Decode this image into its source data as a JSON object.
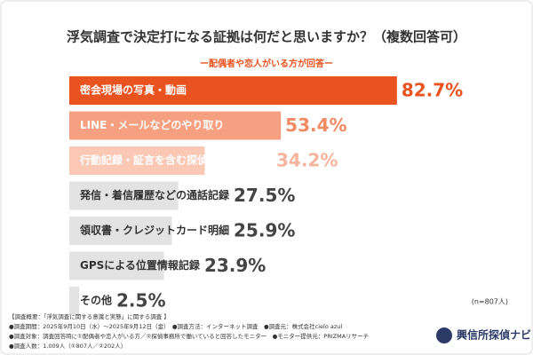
{
  "chart_data": {
    "type": "bar",
    "orientation": "horizontal",
    "title": "浮気調査で決定打になる証拠は何だと思いますか？（複数回答可）",
    "subtitle": "ー配偶者や恋人がいる方が回答ー",
    "categories": [
      "密会現場の写真・動画",
      "LINE・メールなどのやり取り",
      "行動記録・証言を含む探偵の調査報告書",
      "発信・着信履歴などの通話記録",
      "領収書・クレジットカード明細",
      "GPSによる位置情報記録",
      "その他"
    ],
    "values": [
      82.7,
      53.4,
      34.2,
      27.5,
      25.9,
      23.9,
      2.5
    ],
    "value_labels": [
      "82.7%",
      "53.4%",
      "34.2%",
      "27.5%",
      "25.9%",
      "23.9%",
      "2.5%"
    ],
    "colors": [
      "#e8531f",
      "#f6a081",
      "#fac8b4",
      "#e3e3e3",
      "#e3e3e3",
      "#e3e3e3",
      "#e3e3e3"
    ],
    "label_colors": [
      "#e8531f",
      "#f08a63",
      "#f7b49c",
      "#444444",
      "#444444",
      "#444444",
      "#444444"
    ],
    "category_label_colors": [
      "#ffffff",
      "#ffffff",
      "#ffffff",
      "#333333",
      "#333333",
      "#333333",
      "#333333"
    ],
    "sample_note": "(n=807人)",
    "notes": [
      "【調査概要：「浮気調査に関する意識と実態」に関する調査 】",
      "●調査期間：2025年9月10日（水）〜2025年9月12日（金）　●調査方法：インターネット調査　●調査元：株式会社cielo azul",
      "●調査対象：調査回答時に①配偶者や恋人がいる方／②探偵事務所で働いていると回答したモニター　●モニター提供元：PRIZMAリサーチ",
      "●調査人数：1,009人（①807人／②202人）"
    ],
    "logo": "興信所探偵ナビ"
  }
}
